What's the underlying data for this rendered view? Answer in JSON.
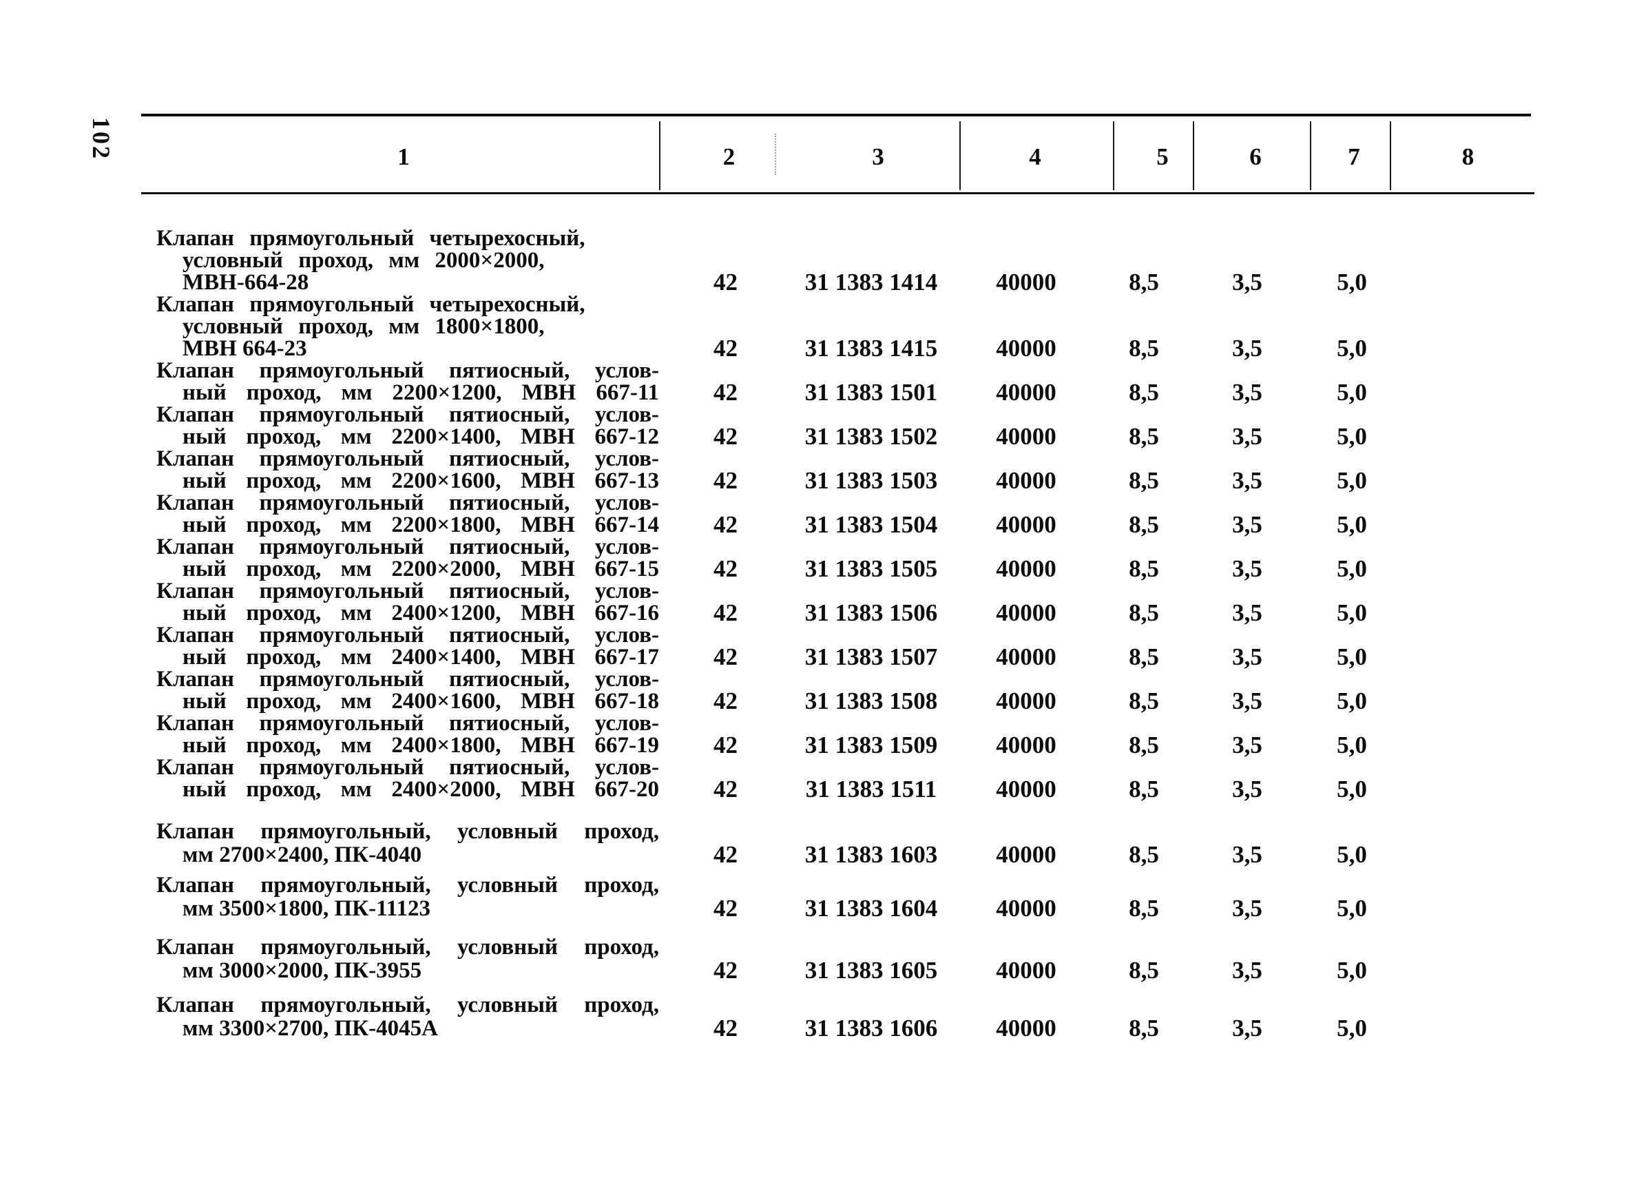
{
  "page": {
    "number": "102"
  },
  "table": {
    "column_headers": [
      "1",
      "2",
      "3",
      "4",
      "5",
      "6",
      "7",
      "8"
    ],
    "rows": [
      {
        "description_lines": [
          "Клапан прямоугольный четырехосный,",
          "условный проход, мм 2000×2000,",
          "МВН-664-28"
        ],
        "fill_lines": [
          false,
          false,
          false
        ],
        "values": {
          "c2": "42",
          "c3": "31 1383 1414",
          "c4": "40000",
          "c5": "8,5",
          "c6": "3,5",
          "c7": "5,0",
          "c8": ""
        }
      },
      {
        "description_lines": [
          "Клапан прямоугольный четырехосный,",
          "условный проход, мм 1800×1800,",
          "МВН 664-23"
        ],
        "fill_lines": [
          false,
          false,
          false
        ],
        "values": {
          "c2": "42",
          "c3": "31 1383 1415",
          "c4": "40000",
          "c5": "8,5",
          "c6": "3,5",
          "c7": "5,0",
          "c8": ""
        }
      },
      {
        "description_lines": [
          "Клапан прямоугольный пятиосный, услов-",
          "ный проход, мм 2200×1200, МВН 667-11"
        ],
        "fill_lines": [
          true,
          true
        ],
        "values": {
          "c2": "42",
          "c3": "31 1383 1501",
          "c4": "40000",
          "c5": "8,5",
          "c6": "3,5",
          "c7": "5,0",
          "c8": ""
        }
      },
      {
        "description_lines": [
          "Клапан прямоугольный пятиосный, услов-",
          "ный проход, мм 2200×1400, МВН 667-12"
        ],
        "fill_lines": [
          true,
          true
        ],
        "values": {
          "c2": "42",
          "c3": "31 1383 1502",
          "c4": "40000",
          "c5": "8,5",
          "c6": "3,5",
          "c7": "5,0",
          "c8": ""
        }
      },
      {
        "description_lines": [
          "Клапан прямоугольный пятиосный, услов-",
          "ный проход, мм 2200×1600, МВН 667-13"
        ],
        "fill_lines": [
          true,
          true
        ],
        "values": {
          "c2": "42",
          "c3": "31 1383 1503",
          "c4": "40000",
          "c5": "8,5",
          "c6": "3,5",
          "c7": "5,0",
          "c8": ""
        }
      },
      {
        "description_lines": [
          "Клапан прямоугольный пятиосный, услов-",
          "ный проход, мм 2200×1800, МВН 667-14"
        ],
        "fill_lines": [
          true,
          true
        ],
        "values": {
          "c2": "42",
          "c3": "31 1383 1504",
          "c4": "40000",
          "c5": "8,5",
          "c6": "3,5",
          "c7": "5,0",
          "c8": ""
        }
      },
      {
        "description_lines": [
          "Клапан прямоугольный пятиосный, услов-",
          "ный проход, мм 2200×2000, МВН 667-15"
        ],
        "fill_lines": [
          true,
          true
        ],
        "values": {
          "c2": "42",
          "c3": "31 1383 1505",
          "c4": "40000",
          "c5": "8,5",
          "c6": "3,5",
          "c7": "5,0",
          "c8": ""
        }
      },
      {
        "description_lines": [
          "Клапан прямоугольный пятиосный, услов-",
          "ный проход, мм 2400×1200, МВН 667-16"
        ],
        "fill_lines": [
          true,
          true
        ],
        "values": {
          "c2": "42",
          "c3": "31 1383 1506",
          "c4": "40000",
          "c5": "8,5",
          "c6": "3,5",
          "c7": "5,0",
          "c8": ""
        }
      },
      {
        "description_lines": [
          "Клапан прямоугольный пятиосный, услов-",
          "ный проход, мм 2400×1400, МВН 667-17"
        ],
        "fill_lines": [
          true,
          true
        ],
        "values": {
          "c2": "42",
          "c3": "31 1383 1507",
          "c4": "40000",
          "c5": "8,5",
          "c6": "3,5",
          "c7": "5,0",
          "c8": ""
        }
      },
      {
        "description_lines": [
          "Клапан прямоугольный пятиосный, услов-",
          "ный проход, мм 2400×1600, МВН 667-18"
        ],
        "fill_lines": [
          true,
          true
        ],
        "values": {
          "c2": "42",
          "c3": "31 1383 1508",
          "c4": "40000",
          "c5": "8,5",
          "c6": "3,5",
          "c7": "5,0",
          "c8": ""
        }
      },
      {
        "description_lines": [
          "Клапан прямоугольный пятиосный, услов-",
          "ный проход, мм 2400×1800, МВН 667-19"
        ],
        "fill_lines": [
          true,
          true
        ],
        "values": {
          "c2": "42",
          "c3": "31 1383 1509",
          "c4": "40000",
          "c5": "8,5",
          "c6": "3,5",
          "c7": "5,0",
          "c8": ""
        }
      },
      {
        "description_lines": [
          "Клапан прямоугольный пятиосный, услов-",
          "ный проход, мм 2400×2000, МВН 667-20"
        ],
        "fill_lines": [
          true,
          true
        ],
        "values": {
          "c2": "42",
          "c3": "31 1383 1511",
          "c4": "40000",
          "c5": "8,5",
          "c6": "3,5",
          "c7": "5,0",
          "c8": ""
        }
      },
      {
        "description_lines": [
          "Клапан прямоугольный, условный проход,",
          "мм 2700×2400, ПК-4040"
        ],
        "fill_lines": [
          true,
          false
        ],
        "values": {
          "c2": "42",
          "c3": "31 1383 1603",
          "c4": "40000",
          "c5": "8,5",
          "c6": "3,5",
          "c7": "5,0",
          "c8": ""
        }
      },
      {
        "description_lines": [
          "Клапан прямоугольный, условный проход,",
          "мм 3500×1800, ПК-11123"
        ],
        "fill_lines": [
          true,
          false
        ],
        "values": {
          "c2": "42",
          "c3": "31 1383 1604",
          "c4": "40000",
          "c5": "8,5",
          "c6": "3,5",
          "c7": "5,0",
          "c8": ""
        }
      },
      {
        "description_lines": [
          "Клапан прямоугольный, условный проход,",
          "мм 3000×2000, ПК-3955"
        ],
        "fill_lines": [
          true,
          false
        ],
        "values": {
          "c2": "42",
          "c3": "31 1383 1605",
          "c4": "40000",
          "c5": "8,5",
          "c6": "3,5",
          "c7": "5,0",
          "c8": ""
        }
      },
      {
        "description_lines": [
          "Клапан прямоугольный, условный проход,",
          "мм 3300×2700, ПК-4045А"
        ],
        "fill_lines": [
          true,
          false
        ],
        "values": {
          "c2": "42",
          "c3": "31 1383 1606",
          "c4": "40000",
          "c5": "8,5",
          "c6": "3,5",
          "c7": "5,0",
          "c8": ""
        }
      }
    ]
  }
}
